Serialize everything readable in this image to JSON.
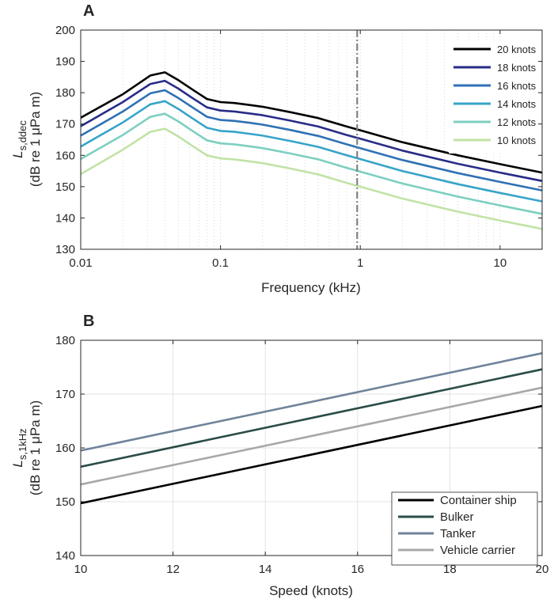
{
  "chart_data": [
    {
      "type": "line",
      "panel_label": "A",
      "xlabel": "Frequency (kHz)",
      "ylabel_symbol": "L",
      "ylabel_subscript": "s,ddec",
      "ylabel_units": "(dB re 1 μPa m)",
      "xscale": "log",
      "xlim": [
        0.01,
        20
      ],
      "ylim": [
        130,
        200
      ],
      "xticks": [
        0.01,
        0.1,
        1,
        10
      ],
      "xtick_labels": [
        "0.01",
        "0.1",
        "1",
        "10"
      ],
      "yticks": [
        130,
        140,
        150,
        160,
        170,
        180,
        190,
        200
      ],
      "ytick_labels": [
        "130",
        "140",
        "150",
        "160",
        "170",
        "180",
        "190",
        "200"
      ],
      "grid": "minor-dotted",
      "legend_position": "top-right",
      "vline": {
        "x": 0.95,
        "style": "dash-dot",
        "color": "#808080"
      },
      "x": [
        0.01,
        0.02,
        0.0315,
        0.04,
        0.05,
        0.063,
        0.08,
        0.1,
        0.126,
        0.16,
        0.2,
        0.315,
        0.5,
        0.8,
        1,
        2,
        5,
        10,
        20
      ],
      "series": [
        {
          "name": "20 knots",
          "color": "#000000",
          "values": [
            172,
            179.5,
            185.5,
            186.5,
            184,
            181,
            178,
            177,
            176.7,
            176.1,
            175.5,
            173.8,
            171.9,
            169.2,
            168,
            164.2,
            160,
            157.2,
            154.5
          ]
        },
        {
          "name": "18 knots",
          "color": "#282c87",
          "values": [
            169.3,
            177,
            182.8,
            183.8,
            181.3,
            178.3,
            175.3,
            174.3,
            174,
            173.4,
            172.8,
            171.1,
            169.2,
            166.5,
            165.3,
            161.5,
            157.3,
            154.5,
            151.8
          ]
        },
        {
          "name": "16 knots",
          "color": "#2e71b4",
          "values": [
            166.3,
            174,
            179.8,
            180.8,
            178.3,
            175.3,
            172.3,
            171.3,
            171,
            170.4,
            169.8,
            168.1,
            166.2,
            163.5,
            162.3,
            158.5,
            154.3,
            151.5,
            148.8
          ]
        },
        {
          "name": "14 knots",
          "color": "#36a4c9",
          "values": [
            162.8,
            170.5,
            176.3,
            177.3,
            174.8,
            171.8,
            168.8,
            167.8,
            167.5,
            166.9,
            166.3,
            164.6,
            162.7,
            160,
            158.8,
            155,
            150.8,
            148,
            145.3
          ]
        },
        {
          "name": "12 knots",
          "color": "#7dcfc0",
          "values": [
            158.8,
            166.5,
            172.3,
            173.3,
            170.8,
            167.8,
            164.8,
            163.8,
            163.5,
            162.9,
            162.3,
            160.6,
            158.7,
            156,
            154.8,
            151,
            146.8,
            144,
            141.3
          ]
        },
        {
          "name": "10 knots",
          "color": "#c1e3a6",
          "values": [
            154,
            161.8,
            167.5,
            168.5,
            166,
            163,
            160,
            159,
            158.7,
            158.1,
            157.5,
            155.8,
            153.9,
            151.2,
            150,
            146.2,
            142,
            139.2,
            136.5
          ]
        }
      ]
    },
    {
      "type": "line",
      "panel_label": "B",
      "xlabel": "Speed (knots)",
      "ylabel_symbol": "L",
      "ylabel_subscript": "s,1kHz",
      "ylabel_units": "(dB re 1 μPa m)",
      "xlim": [
        10,
        20
      ],
      "ylim": [
        140,
        180
      ],
      "xticks": [
        10,
        12,
        14,
        16,
        18,
        20
      ],
      "xtick_labels": [
        "10",
        "12",
        "14",
        "16",
        "18",
        "20"
      ],
      "yticks": [
        140,
        150,
        160,
        170,
        180
      ],
      "ytick_labels": [
        "140",
        "150",
        "160",
        "170",
        "180"
      ],
      "grid": "major",
      "legend_position": "bottom-right",
      "x": [
        10,
        20
      ],
      "series": [
        {
          "name": "Container ship",
          "color": "#000000",
          "values": [
            149.7,
            167.8
          ]
        },
        {
          "name": "Bulker",
          "color": "#2a4c47",
          "values": [
            156.5,
            174.6
          ]
        },
        {
          "name": "Tanker",
          "color": "#6f839a",
          "values": [
            159.5,
            177.6
          ]
        },
        {
          "name": "Vehicle carrier",
          "color": "#a8a8a8",
          "values": [
            153.2,
            171.2
          ]
        }
      ]
    }
  ]
}
